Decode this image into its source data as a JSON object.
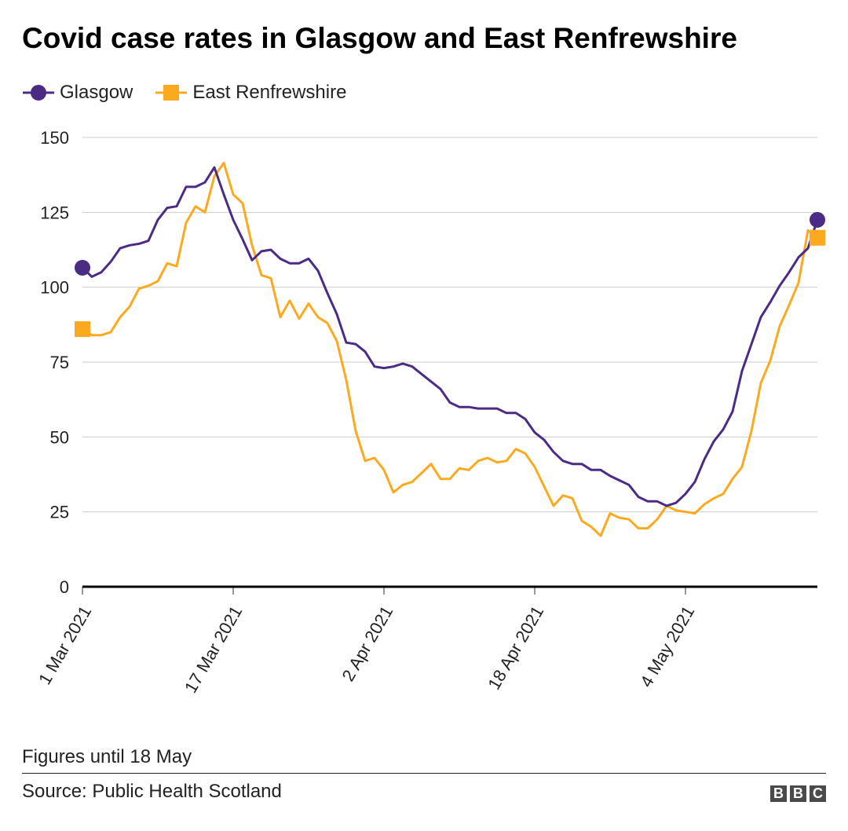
{
  "title": "Covid case rates in Glasgow and East Renfrewshire",
  "legend": [
    {
      "label": "Glasgow",
      "color": "#4b2c85",
      "marker": "circle"
    },
    {
      "label": "East Renfrewshire",
      "color": "#fbaa1f",
      "marker": "square"
    }
  ],
  "footer": {
    "note": "Figures until 18 May",
    "source": "Source: Public Health Scotland",
    "logo": [
      "B",
      "B",
      "C"
    ]
  },
  "chart_data": {
    "type": "line",
    "title": "Covid case rates in Glasgow and East Renfrewshire",
    "xlabel": "",
    "ylabel": "",
    "ylim": [
      0,
      150
    ],
    "yticks": [
      0,
      25,
      50,
      75,
      100,
      125,
      150
    ],
    "grid": true,
    "legend_position": "top-left",
    "x_start": "1 Mar 2021",
    "x_end": "18 May 2021",
    "num_days": 79,
    "xtick_labels": [
      {
        "label": "1 Mar 2021",
        "day": 0
      },
      {
        "label": "17 Mar 2021",
        "day": 16
      },
      {
        "label": "2 Apr 2021",
        "day": 32
      },
      {
        "label": "18 Apr 2021",
        "day": 48
      },
      {
        "label": "4 May 2021",
        "day": 64
      }
    ],
    "series": [
      {
        "name": "Glasgow",
        "color": "#4b2c85",
        "marker": "circle",
        "values": [
          106.5,
          103.5,
          105,
          108.5,
          113,
          114,
          114.5,
          115.5,
          122.5,
          126.5,
          127,
          133.5,
          133.5,
          135,
          140,
          131,
          122.5,
          116,
          109,
          112,
          112.5,
          109.5,
          108,
          108,
          109.5,
          105.5,
          98,
          91,
          81.5,
          81,
          78.5,
          73.5,
          73,
          73.5,
          74.5,
          73.5,
          71,
          68.5,
          66,
          61.5,
          60,
          60,
          59.5,
          59.5,
          59.5,
          58,
          58,
          56,
          51.5,
          49,
          45,
          42,
          41,
          41,
          39,
          39,
          37,
          35.5,
          34,
          30,
          28.5,
          28.5,
          27,
          28,
          31,
          35,
          42.5,
          48.5,
          52.5,
          58.5,
          72,
          81,
          90,
          95,
          100.5,
          105,
          110,
          113,
          122.5
        ]
      },
      {
        "name": "East Renfrewshire",
        "color": "#fbaa1f",
        "marker": "square",
        "values": [
          86,
          84,
          84,
          85,
          90,
          93.5,
          99.5,
          100.5,
          102,
          108,
          107,
          121.5,
          127,
          125,
          137,
          141.5,
          131,
          128,
          114,
          104,
          103,
          90,
          95.5,
          89.5,
          94.5,
          90,
          88,
          82,
          69,
          52,
          42,
          43,
          39,
          31.5,
          34,
          35,
          38,
          41,
          36,
          36,
          39.5,
          39,
          42,
          43,
          41.5,
          42,
          46,
          44.5,
          40,
          33.5,
          27,
          30.5,
          29.5,
          22,
          20,
          17,
          24.5,
          23,
          22.5,
          19.5,
          19.5,
          22.5,
          27,
          25.5,
          25,
          24.5,
          27.5,
          29.5,
          31,
          36,
          40,
          52,
          68,
          75.5,
          87,
          94,
          101.5,
          119,
          116.5
        ]
      }
    ]
  }
}
